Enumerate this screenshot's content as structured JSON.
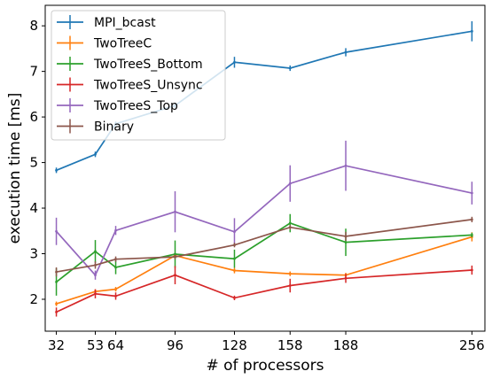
{
  "chart_data": {
    "type": "line",
    "xlabel": "# of processors",
    "ylabel": "execution time [ms]",
    "x": [
      32,
      53,
      64,
      96,
      128,
      158,
      188,
      256
    ],
    "x_tick_labels": [
      "32",
      "53",
      "64",
      "96",
      "128",
      "158",
      "188",
      "256"
    ],
    "xlim": [
      26,
      263
    ],
    "ylim": [
      1.3,
      8.45
    ],
    "y_ticks": [
      2,
      3,
      4,
      5,
      6,
      7,
      8
    ],
    "y_tick_labels": [
      "2",
      "3",
      "4",
      "5",
      "6",
      "7",
      "8"
    ],
    "legend_position": "top-left",
    "grid": false,
    "error_bars": true,
    "series": [
      {
        "name": "MPI_bcast",
        "color": "#1f77b4",
        "values": [
          4.83,
          5.18,
          5.85,
          6.25,
          7.2,
          7.07,
          7.42,
          7.88
        ],
        "errors": [
          0.06,
          0.06,
          0.05,
          0.05,
          0.12,
          0.06,
          0.09,
          0.22
        ]
      },
      {
        "name": "TwoTreeC",
        "color": "#ff7f0e",
        "values": [
          1.9,
          2.17,
          2.22,
          2.96,
          2.63,
          2.56,
          2.53,
          3.37
        ],
        "errors": [
          0.05,
          0.05,
          0.05,
          0.06,
          0.06,
          0.05,
          0.05,
          0.1
        ]
      },
      {
        "name": "TwoTreeS_Bottom",
        "color": "#2ca02c",
        "values": [
          2.38,
          3.05,
          2.7,
          2.99,
          2.89,
          3.67,
          3.25,
          3.41
        ],
        "errors": [
          0.3,
          0.25,
          0.15,
          0.3,
          0.2,
          0.2,
          0.3,
          0.05
        ]
      },
      {
        "name": "TwoTreeS_Unsync",
        "color": "#d62728",
        "values": [
          1.72,
          2.12,
          2.07,
          2.53,
          2.03,
          2.3,
          2.46,
          2.64
        ],
        "errors": [
          0.1,
          0.1,
          0.08,
          0.2,
          0.05,
          0.15,
          0.1,
          0.1
        ]
      },
      {
        "name": "TwoTreeS_Top",
        "color": "#9467bd",
        "values": [
          3.49,
          2.53,
          3.51,
          3.92,
          3.48,
          4.54,
          4.93,
          4.33
        ],
        "errors": [
          0.3,
          0.1,
          0.1,
          0.45,
          0.3,
          0.4,
          0.55,
          0.25
        ]
      },
      {
        "name": "Binary",
        "color": "#8c564b",
        "values": [
          2.6,
          2.75,
          2.88,
          2.93,
          3.19,
          3.58,
          3.38,
          3.75
        ],
        "errors": [
          0.1,
          0.08,
          0.06,
          0.05,
          0.05,
          0.05,
          0.1,
          0.06
        ]
      }
    ]
  }
}
